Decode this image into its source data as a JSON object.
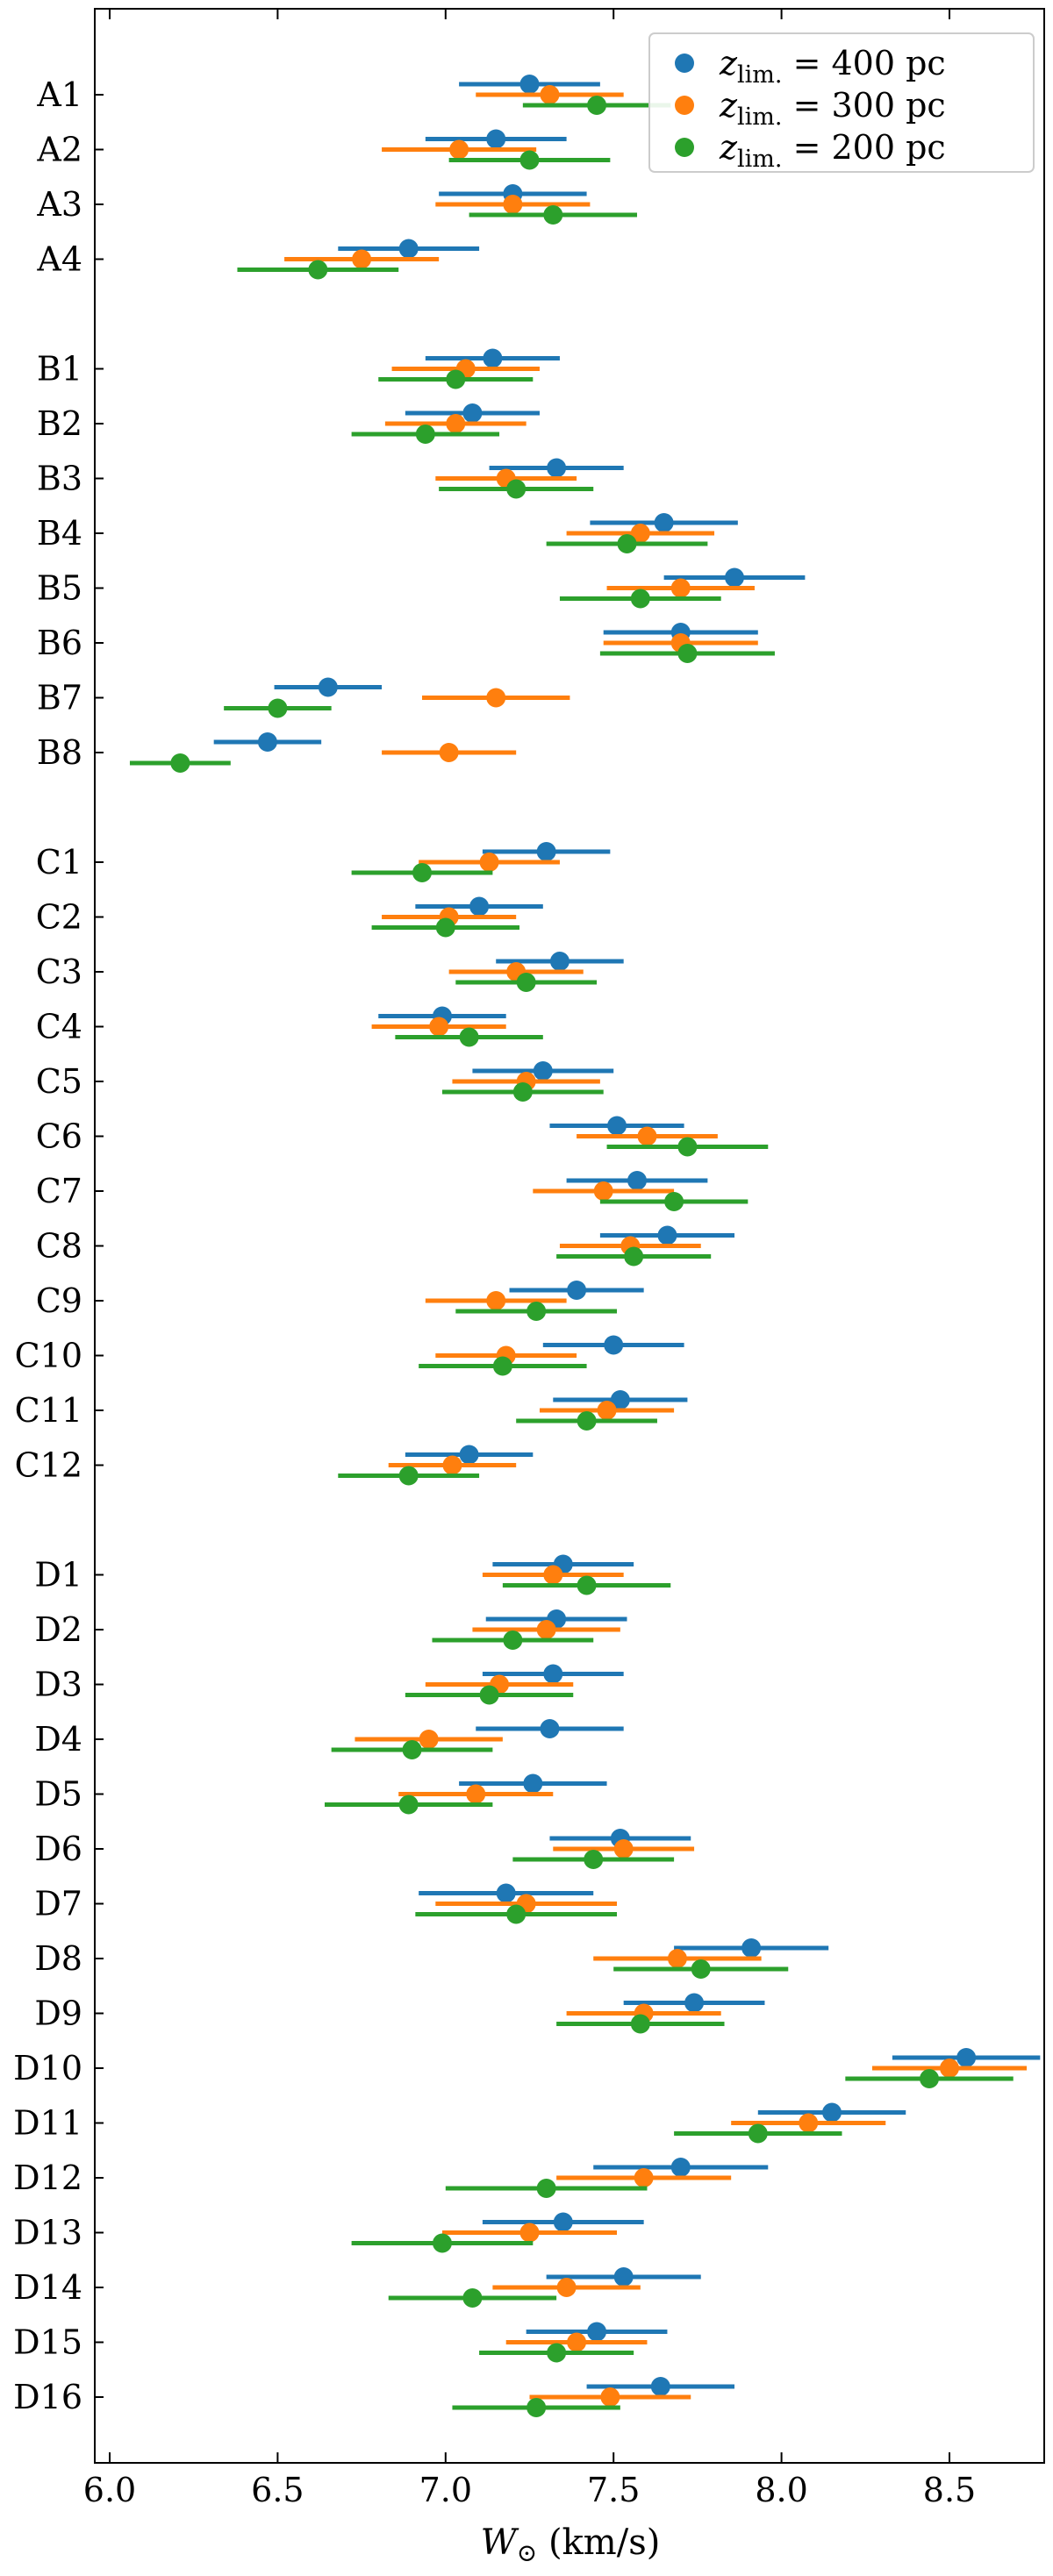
{
  "chart_data": {
    "type": "scatter",
    "subtype": "horizontal-errorbar",
    "title": "",
    "xlabel": "W_⊙ (km/s)",
    "xlabel_parts": {
      "main": "W",
      "sub": "⊙",
      "unit": " (km/s)"
    },
    "xlim": [
      5.95,
      8.9
    ],
    "x_ticks": [
      6.0,
      6.5,
      7.0,
      7.5,
      8.0,
      8.5
    ],
    "x_tick_labels": [
      "6.0",
      "6.5",
      "7.0",
      "7.5",
      "8.0",
      "8.5"
    ],
    "grid": false,
    "legend_position": "top-right",
    "series": [
      {
        "key": "s400",
        "name": "z_lim. = 400 pc",
        "label_z": "z",
        "label_sub": "lim.",
        "label_rest": " = 400 pc",
        "color": "#1f77b4"
      },
      {
        "key": "s300",
        "name": "z_lim. = 300 pc",
        "label_z": "z",
        "label_sub": "lim.",
        "label_rest": " = 300 pc",
        "color": "#ff7f0e"
      },
      {
        "key": "s200",
        "name": "z_lim. = 200 pc",
        "label_z": "z",
        "label_sub": "lim.",
        "label_rest": " = 200 pc",
        "color": "#2ca02c"
      }
    ],
    "groups": [
      {
        "name": "A",
        "rows": [
          {
            "label": "A1",
            "s400": [
              7.25,
              0.21
            ],
            "s300": [
              7.31,
              0.22
            ],
            "s200": [
              7.45,
              0.22
            ]
          },
          {
            "label": "A2",
            "s400": [
              7.15,
              0.21
            ],
            "s300": [
              7.04,
              0.23
            ],
            "s200": [
              7.25,
              0.24
            ]
          },
          {
            "label": "A3",
            "s400": [
              7.2,
              0.22
            ],
            "s300": [
              7.2,
              0.23
            ],
            "s200": [
              7.32,
              0.25
            ]
          },
          {
            "label": "A4",
            "s400": [
              6.89,
              0.21
            ],
            "s300": [
              6.75,
              0.23
            ],
            "s200": [
              6.62,
              0.24
            ]
          }
        ]
      },
      {
        "name": "B",
        "rows": [
          {
            "label": "B1",
            "s400": [
              7.14,
              0.2
            ],
            "s300": [
              7.06,
              0.22
            ],
            "s200": [
              7.03,
              0.23
            ]
          },
          {
            "label": "B2",
            "s400": [
              7.08,
              0.2
            ],
            "s300": [
              7.03,
              0.21
            ],
            "s200": [
              6.94,
              0.22
            ]
          },
          {
            "label": "B3",
            "s400": [
              7.33,
              0.2
            ],
            "s300": [
              7.18,
              0.21
            ],
            "s200": [
              7.21,
              0.23
            ]
          },
          {
            "label": "B4",
            "s400": [
              7.65,
              0.22
            ],
            "s300": [
              7.58,
              0.22
            ],
            "s200": [
              7.54,
              0.24
            ]
          },
          {
            "label": "B5",
            "s400": [
              7.86,
              0.21
            ],
            "s300": [
              7.7,
              0.22
            ],
            "s200": [
              7.58,
              0.24
            ]
          },
          {
            "label": "B6",
            "s400": [
              7.7,
              0.23
            ],
            "s300": [
              7.7,
              0.23
            ],
            "s200": [
              7.72,
              0.26
            ]
          },
          {
            "label": "B7",
            "s400": [
              6.65,
              0.16
            ],
            "s300": [
              7.15,
              0.22
            ],
            "s200": [
              6.5,
              0.16
            ]
          },
          {
            "label": "B8",
            "s400": [
              6.47,
              0.16
            ],
            "s300": [
              7.01,
              0.2
            ],
            "s200": [
              6.21,
              0.15
            ]
          }
        ]
      },
      {
        "name": "C",
        "rows": [
          {
            "label": "C1",
            "s400": [
              7.3,
              0.19
            ],
            "s300": [
              7.13,
              0.21
            ],
            "s200": [
              6.93,
              0.21
            ]
          },
          {
            "label": "C2",
            "s400": [
              7.1,
              0.19
            ],
            "s300": [
              7.01,
              0.2
            ],
            "s200": [
              7.0,
              0.22
            ]
          },
          {
            "label": "C3",
            "s400": [
              7.34,
              0.19
            ],
            "s300": [
              7.21,
              0.2
            ],
            "s200": [
              7.24,
              0.21
            ]
          },
          {
            "label": "C4",
            "s400": [
              6.99,
              0.19
            ],
            "s300": [
              6.98,
              0.2
            ],
            "s200": [
              7.07,
              0.22
            ]
          },
          {
            "label": "C5",
            "s400": [
              7.29,
              0.21
            ],
            "s300": [
              7.24,
              0.22
            ],
            "s200": [
              7.23,
              0.24
            ]
          },
          {
            "label": "C6",
            "s400": [
              7.51,
              0.2
            ],
            "s300": [
              7.6,
              0.21
            ],
            "s200": [
              7.72,
              0.24
            ]
          },
          {
            "label": "C7",
            "s400": [
              7.57,
              0.21
            ],
            "s300": [
              7.47,
              0.21
            ],
            "s200": [
              7.68,
              0.22
            ]
          },
          {
            "label": "C8",
            "s400": [
              7.66,
              0.2
            ],
            "s300": [
              7.55,
              0.21
            ],
            "s200": [
              7.56,
              0.23
            ]
          },
          {
            "label": "C9",
            "s400": [
              7.39,
              0.2
            ],
            "s300": [
              7.15,
              0.21
            ],
            "s200": [
              7.27,
              0.24
            ]
          },
          {
            "label": "C10",
            "s400": [
              7.5,
              0.21
            ],
            "s300": [
              7.18,
              0.21
            ],
            "s200": [
              7.17,
              0.25
            ]
          },
          {
            "label": "C11",
            "s400": [
              7.52,
              0.2
            ],
            "s300": [
              7.48,
              0.2
            ],
            "s200": [
              7.42,
              0.21
            ]
          },
          {
            "label": "C12",
            "s400": [
              7.07,
              0.19
            ],
            "s300": [
              7.02,
              0.19
            ],
            "s200": [
              6.89,
              0.21
            ]
          }
        ]
      },
      {
        "name": "D",
        "rows": [
          {
            "label": "D1",
            "s400": [
              7.35,
              0.21
            ],
            "s300": [
              7.32,
              0.21
            ],
            "s200": [
              7.42,
              0.25
            ]
          },
          {
            "label": "D2",
            "s400": [
              7.33,
              0.21
            ],
            "s300": [
              7.3,
              0.22
            ],
            "s200": [
              7.2,
              0.24
            ]
          },
          {
            "label": "D3",
            "s400": [
              7.32,
              0.21
            ],
            "s300": [
              7.16,
              0.22
            ],
            "s200": [
              7.13,
              0.25
            ]
          },
          {
            "label": "D4",
            "s400": [
              7.31,
              0.22
            ],
            "s300": [
              6.95,
              0.22
            ],
            "s200": [
              6.9,
              0.24
            ]
          },
          {
            "label": "D5",
            "s400": [
              7.26,
              0.22
            ],
            "s300": [
              7.09,
              0.23
            ],
            "s200": [
              6.89,
              0.25
            ]
          },
          {
            "label": "D6",
            "s400": [
              7.52,
              0.21
            ],
            "s300": [
              7.53,
              0.21
            ],
            "s200": [
              7.44,
              0.24
            ]
          },
          {
            "label": "D7",
            "s400": [
              7.18,
              0.26
            ],
            "s300": [
              7.24,
              0.27
            ],
            "s200": [
              7.21,
              0.3
            ]
          },
          {
            "label": "D8",
            "s400": [
              7.91,
              0.23
            ],
            "s300": [
              7.69,
              0.25
            ],
            "s200": [
              7.76,
              0.26
            ]
          },
          {
            "label": "D9",
            "s400": [
              7.74,
              0.21
            ],
            "s300": [
              7.59,
              0.23
            ],
            "s200": [
              7.58,
              0.25
            ]
          },
          {
            "label": "D10",
            "s400": [
              8.55,
              0.22
            ],
            "s300": [
              8.5,
              0.23
            ],
            "s200": [
              8.44,
              0.25
            ]
          },
          {
            "label": "D11",
            "s400": [
              8.15,
              0.22
            ],
            "s300": [
              8.08,
              0.23
            ],
            "s200": [
              7.93,
              0.25
            ]
          },
          {
            "label": "D12",
            "s400": [
              7.7,
              0.26
            ],
            "s300": [
              7.59,
              0.26
            ],
            "s200": [
              7.3,
              0.3
            ]
          },
          {
            "label": "D13",
            "s400": [
              7.35,
              0.24
            ],
            "s300": [
              7.25,
              0.26
            ],
            "s200": [
              6.99,
              0.27
            ]
          },
          {
            "label": "D14",
            "s400": [
              7.53,
              0.23
            ],
            "s300": [
              7.36,
              0.22
            ],
            "s200": [
              7.08,
              0.25
            ]
          },
          {
            "label": "D15",
            "s400": [
              7.45,
              0.21
            ],
            "s300": [
              7.39,
              0.21
            ],
            "s200": [
              7.33,
              0.23
            ]
          },
          {
            "label": "D16",
            "s400": [
              7.64,
              0.22
            ],
            "s300": [
              7.49,
              0.24
            ],
            "s200": [
              7.27,
              0.25
            ]
          }
        ]
      }
    ]
  }
}
